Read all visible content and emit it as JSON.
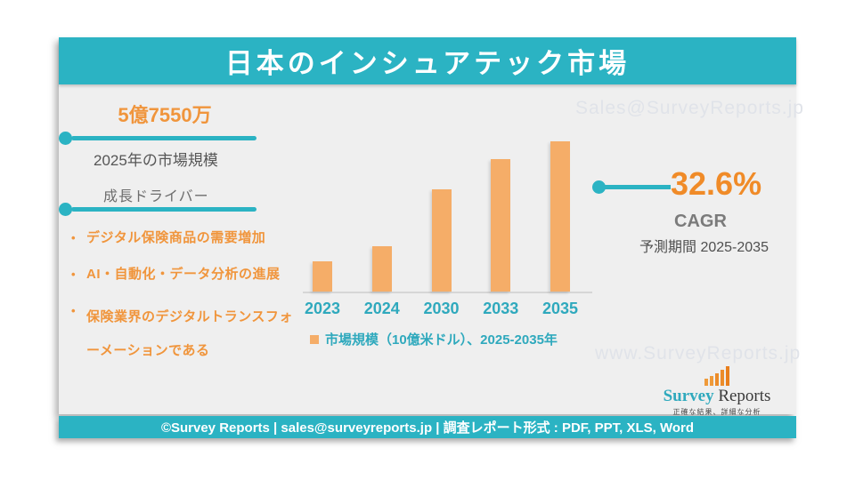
{
  "colors": {
    "accent_teal": "#2bb3c3",
    "teal_text": "#2fa9bd",
    "orange_text": "#f0953c",
    "orange_strong": "#f08b28",
    "bar_orange": "#f5ad68",
    "panel_bg": "#efefef",
    "watermark_gray": "#e0e3e9"
  },
  "header": {
    "title": "日本のインシュアテック市場"
  },
  "stats": {
    "market_size_value": "5億7550万",
    "market_size_label": "2025年の市場規模",
    "growth_driver_label": "成長ドライバー",
    "growth_drivers": [
      "デジタル保険商品の需要増加",
      "AI・自動化・データ分析の進展",
      "保険業界のデジタルトランスフォーメーションである"
    ],
    "bullet_marker": "•"
  },
  "cagr": {
    "value": "32.6%",
    "label": "CAGR",
    "period": "予測期間 2025-2035"
  },
  "chart_data": {
    "type": "bar",
    "title": "日本のインシュアテック市場",
    "categories": [
      "2023",
      "2024",
      "2030",
      "2033",
      "2035"
    ],
    "values_relative": [
      20,
      30,
      68,
      88,
      100
    ],
    "values_note": "no value axis or data labels shown; bar heights estimated from pixels, tallest bar (2035) = 100",
    "legend": "市場規模（10億米ドル）、2025-2035年",
    "legend_position": "bottom",
    "grid": false,
    "bar_color": "#f5ad68",
    "xlabel": "",
    "ylabel": ""
  },
  "watermarks": {
    "top": "Sales@SurveyReports.jp",
    "bottom": "www.SurveyReports.jp"
  },
  "logo": {
    "name_part1": "Survey",
    "name_part2": "Reports",
    "tagline": "正確な結果、詳細な分析"
  },
  "footer": {
    "text": "©Survey Reports | sales@surveyreports.jp |  調査レポート形式 : PDF, PPT, XLS, Word"
  }
}
